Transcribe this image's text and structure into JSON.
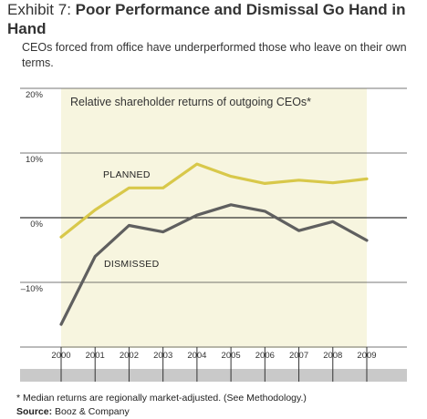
{
  "header": {
    "title_prefix": "Exhibit 7: ",
    "title_bold": "Poor Performance and Dismissal Go Hand in Hand",
    "subtitle": "CEOs forced from office have underperformed those who leave on their own terms."
  },
  "footer": {
    "footnote": "* Median returns are regionally market-adjusted. (See Methodology.)",
    "source_label": "Source:",
    "source_value": " Booz & Company"
  },
  "colors": {
    "planned": "#d8c84a",
    "dismissed": "#5f5f5f",
    "panel": "#f7f5df",
    "baseline": "#c9c9c9"
  },
  "chart_data": {
    "type": "line",
    "title": "Relative shareholder returns of outgoing CEOs*",
    "x": [
      "2000",
      "2001",
      "2002",
      "2003",
      "2004",
      "2005",
      "2006",
      "2007",
      "2008",
      "2009"
    ],
    "y_ticks": [
      "20%",
      "10%",
      "0%",
      "–10%"
    ],
    "ylim": [
      -20,
      20
    ],
    "grid": true,
    "series": [
      {
        "name": "PLANNED",
        "values": [
          -3.0,
          1.2,
          4.6,
          4.6,
          8.3,
          6.4,
          5.3,
          5.8,
          5.4,
          6.0
        ]
      },
      {
        "name": "DISMISSED",
        "values": [
          -16.5,
          -6.0,
          -1.2,
          -2.2,
          0.4,
          2.0,
          1.0,
          -2.0,
          -0.6,
          -3.5
        ]
      }
    ]
  }
}
